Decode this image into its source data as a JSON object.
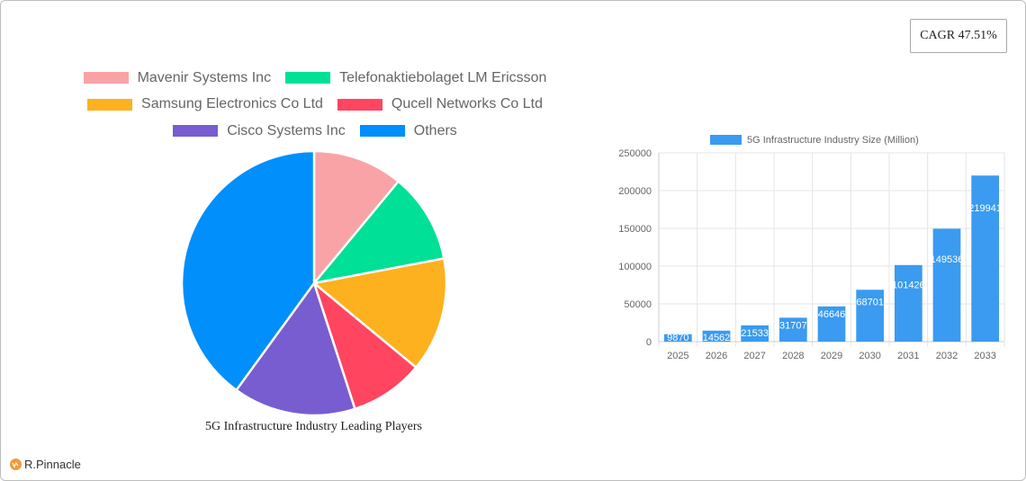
{
  "badge": {
    "cagr_label": "CAGR 47.51%"
  },
  "pie": {
    "title": "5G Infrastructure Industry Leading Players"
  },
  "bar": {
    "legend_label": "5G Infrastructure Industry Size (Million)"
  },
  "logo": {
    "text": "R.Pinnacle"
  },
  "chart_data": [
    {
      "type": "pie",
      "title": "5G Infrastructure Industry Leading Players",
      "legend_position": "top",
      "categories": [
        "Mavenir Systems Inc",
        "Telefonaktiebolaget LM Ericsson",
        "Samsung Electronics Co  Ltd",
        "Qucell Networks Co  Ltd",
        "Cisco Systems Inc",
        "Others"
      ],
      "values": [
        11,
        11,
        14,
        9,
        15,
        40
      ],
      "colors": [
        "#f9a3a6",
        "#00e096",
        "#fdb11f",
        "#ff4560",
        "#775dd0",
        "#008ffb"
      ]
    },
    {
      "type": "bar",
      "title": "",
      "legend": [
        "5G Infrastructure Industry Size (Million)"
      ],
      "legend_position": "top",
      "categories": [
        "2025",
        "2026",
        "2027",
        "2028",
        "2029",
        "2030",
        "2031",
        "2032",
        "2033"
      ],
      "series": [
        {
          "name": "5G Infrastructure Industry Size (Million)",
          "values": [
            9870,
            14562,
            21533,
            31707,
            46646,
            68701,
            101426,
            149536,
            219941
          ],
          "color": "#3a9bf0"
        }
      ],
      "xlabel": "",
      "ylabel": "",
      "ylim": [
        0,
        250000
      ],
      "yticks": [
        0,
        50000,
        100000,
        150000,
        200000,
        250000
      ],
      "grid": true,
      "data_labels": true
    }
  ]
}
